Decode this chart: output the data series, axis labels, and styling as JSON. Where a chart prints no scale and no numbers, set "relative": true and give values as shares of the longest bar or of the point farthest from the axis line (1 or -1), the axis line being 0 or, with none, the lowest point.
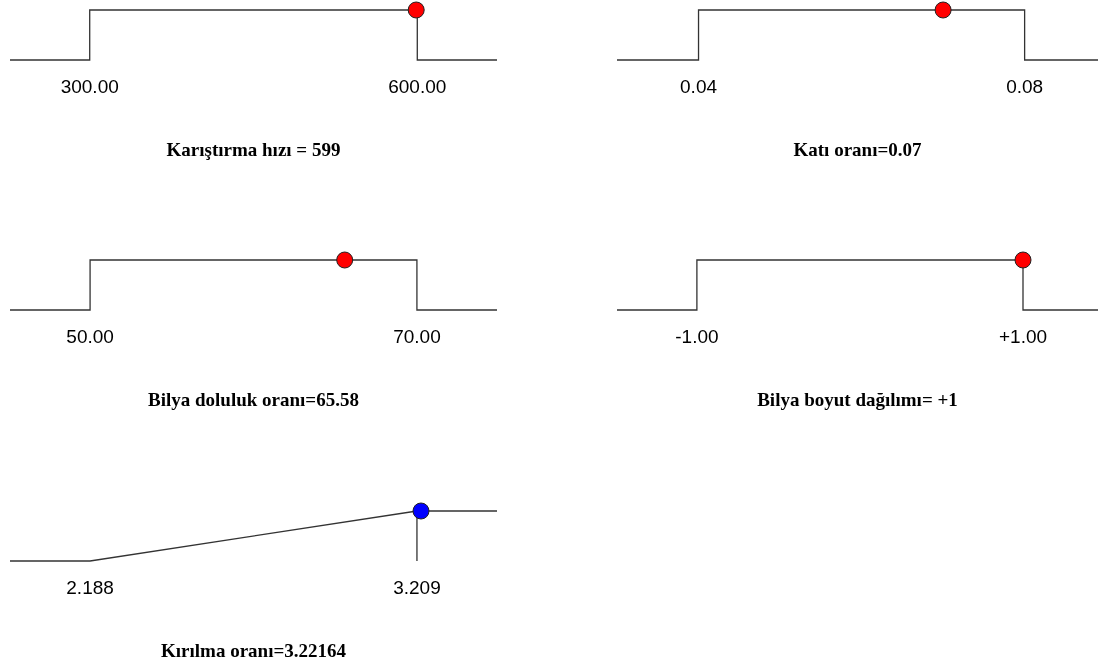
{
  "chart_data": [
    {
      "type": "line",
      "relative": true,
      "xlabel": "Karıştırma hızı = 599",
      "xlim": [
        227,
        673
      ],
      "xticks": [
        {
          "value": 300,
          "label": "300.00"
        },
        {
          "value": 600,
          "label": "600.00"
        }
      ],
      "tick_labels": "x",
      "series": [
        {
          "type": "line",
          "color": "#333333",
          "marker": "none",
          "x": [
            227,
            300,
            300,
            600,
            600,
            673
          ],
          "values": [
            0,
            0,
            1,
            1,
            0,
            0
          ]
        },
        {
          "type": "scatter",
          "color": "#ff0000",
          "marker": "circle",
          "x": [
            599
          ],
          "values": [
            1
          ]
        }
      ]
    },
    {
      "type": "line",
      "relative": true,
      "xlabel": "Katı oranı=0.07",
      "xlim": [
        0.03,
        0.089
      ],
      "xticks": [
        0.04,
        0.08
      ],
      "tick_labels": "x",
      "series": [
        {
          "type": "line",
          "color": "#333333",
          "marker": "none",
          "x": [
            0.03,
            0.04,
            0.04,
            0.08,
            0.08,
            0.089
          ],
          "values": [
            0,
            0,
            1,
            1,
            0,
            0
          ]
        },
        {
          "type": "scatter",
          "color": "#ff0000",
          "marker": "circle",
          "x": [
            0.07
          ],
          "values": [
            1
          ]
        }
      ]
    },
    {
      "type": "line",
      "relative": true,
      "xlabel": "Bilya doluluk oranı=65.58",
      "xlim": [
        45.1,
        74.9
      ],
      "xticks": [
        {
          "value": 50,
          "label": "50.00"
        },
        {
          "value": 70,
          "label": "70.00"
        }
      ],
      "tick_labels": "x",
      "series": [
        {
          "type": "line",
          "color": "#333333",
          "marker": "none",
          "x": [
            45.1,
            50,
            50,
            70,
            70,
            74.9
          ],
          "values": [
            0,
            0,
            1,
            1,
            0,
            0
          ]
        },
        {
          "type": "scatter",
          "color": "#ff0000",
          "marker": "circle",
          "x": [
            65.58
          ],
          "values": [
            1
          ]
        }
      ]
    },
    {
      "type": "line",
      "relative": true,
      "xlabel": "Bilya boyut dağılımı= +1",
      "xlim": [
        -1.49,
        1.46
      ],
      "xticks": [
        {
          "value": -1,
          "label": "-1.00"
        },
        {
          "value": 1,
          "label": "+1.00"
        }
      ],
      "tick_labels": "x",
      "series": [
        {
          "type": "line",
          "color": "#333333",
          "marker": "none",
          "x": [
            -1.49,
            -1,
            -1,
            1,
            1,
            1.46
          ],
          "values": [
            0,
            0,
            1,
            1,
            0,
            0
          ]
        },
        {
          "type": "scatter",
          "color": "#ff0000",
          "marker": "circle",
          "x": [
            1
          ],
          "values": [
            1
          ]
        }
      ]
    },
    {
      "type": "line",
      "relative": true,
      "xlabel": "Kırılma oranı=3.22164",
      "xlim": [
        1.938,
        3.459
      ],
      "xticks": [
        2.188,
        3.209
      ],
      "tick_labels": "x",
      "ref_lines": [
        {
          "axis": "x",
          "value": 3.209,
          "color": "#333333"
        }
      ],
      "series": [
        {
          "type": "line",
          "color": "#333333",
          "marker": "none",
          "x": [
            1.938,
            2.188,
            3.209,
            3.459
          ],
          "values": [
            0,
            0,
            1,
            1
          ]
        },
        {
          "type": "scatter",
          "color": "#0000ff",
          "marker": "circle",
          "x": [
            3.22164
          ],
          "values": [
            1
          ]
        }
      ]
    }
  ]
}
